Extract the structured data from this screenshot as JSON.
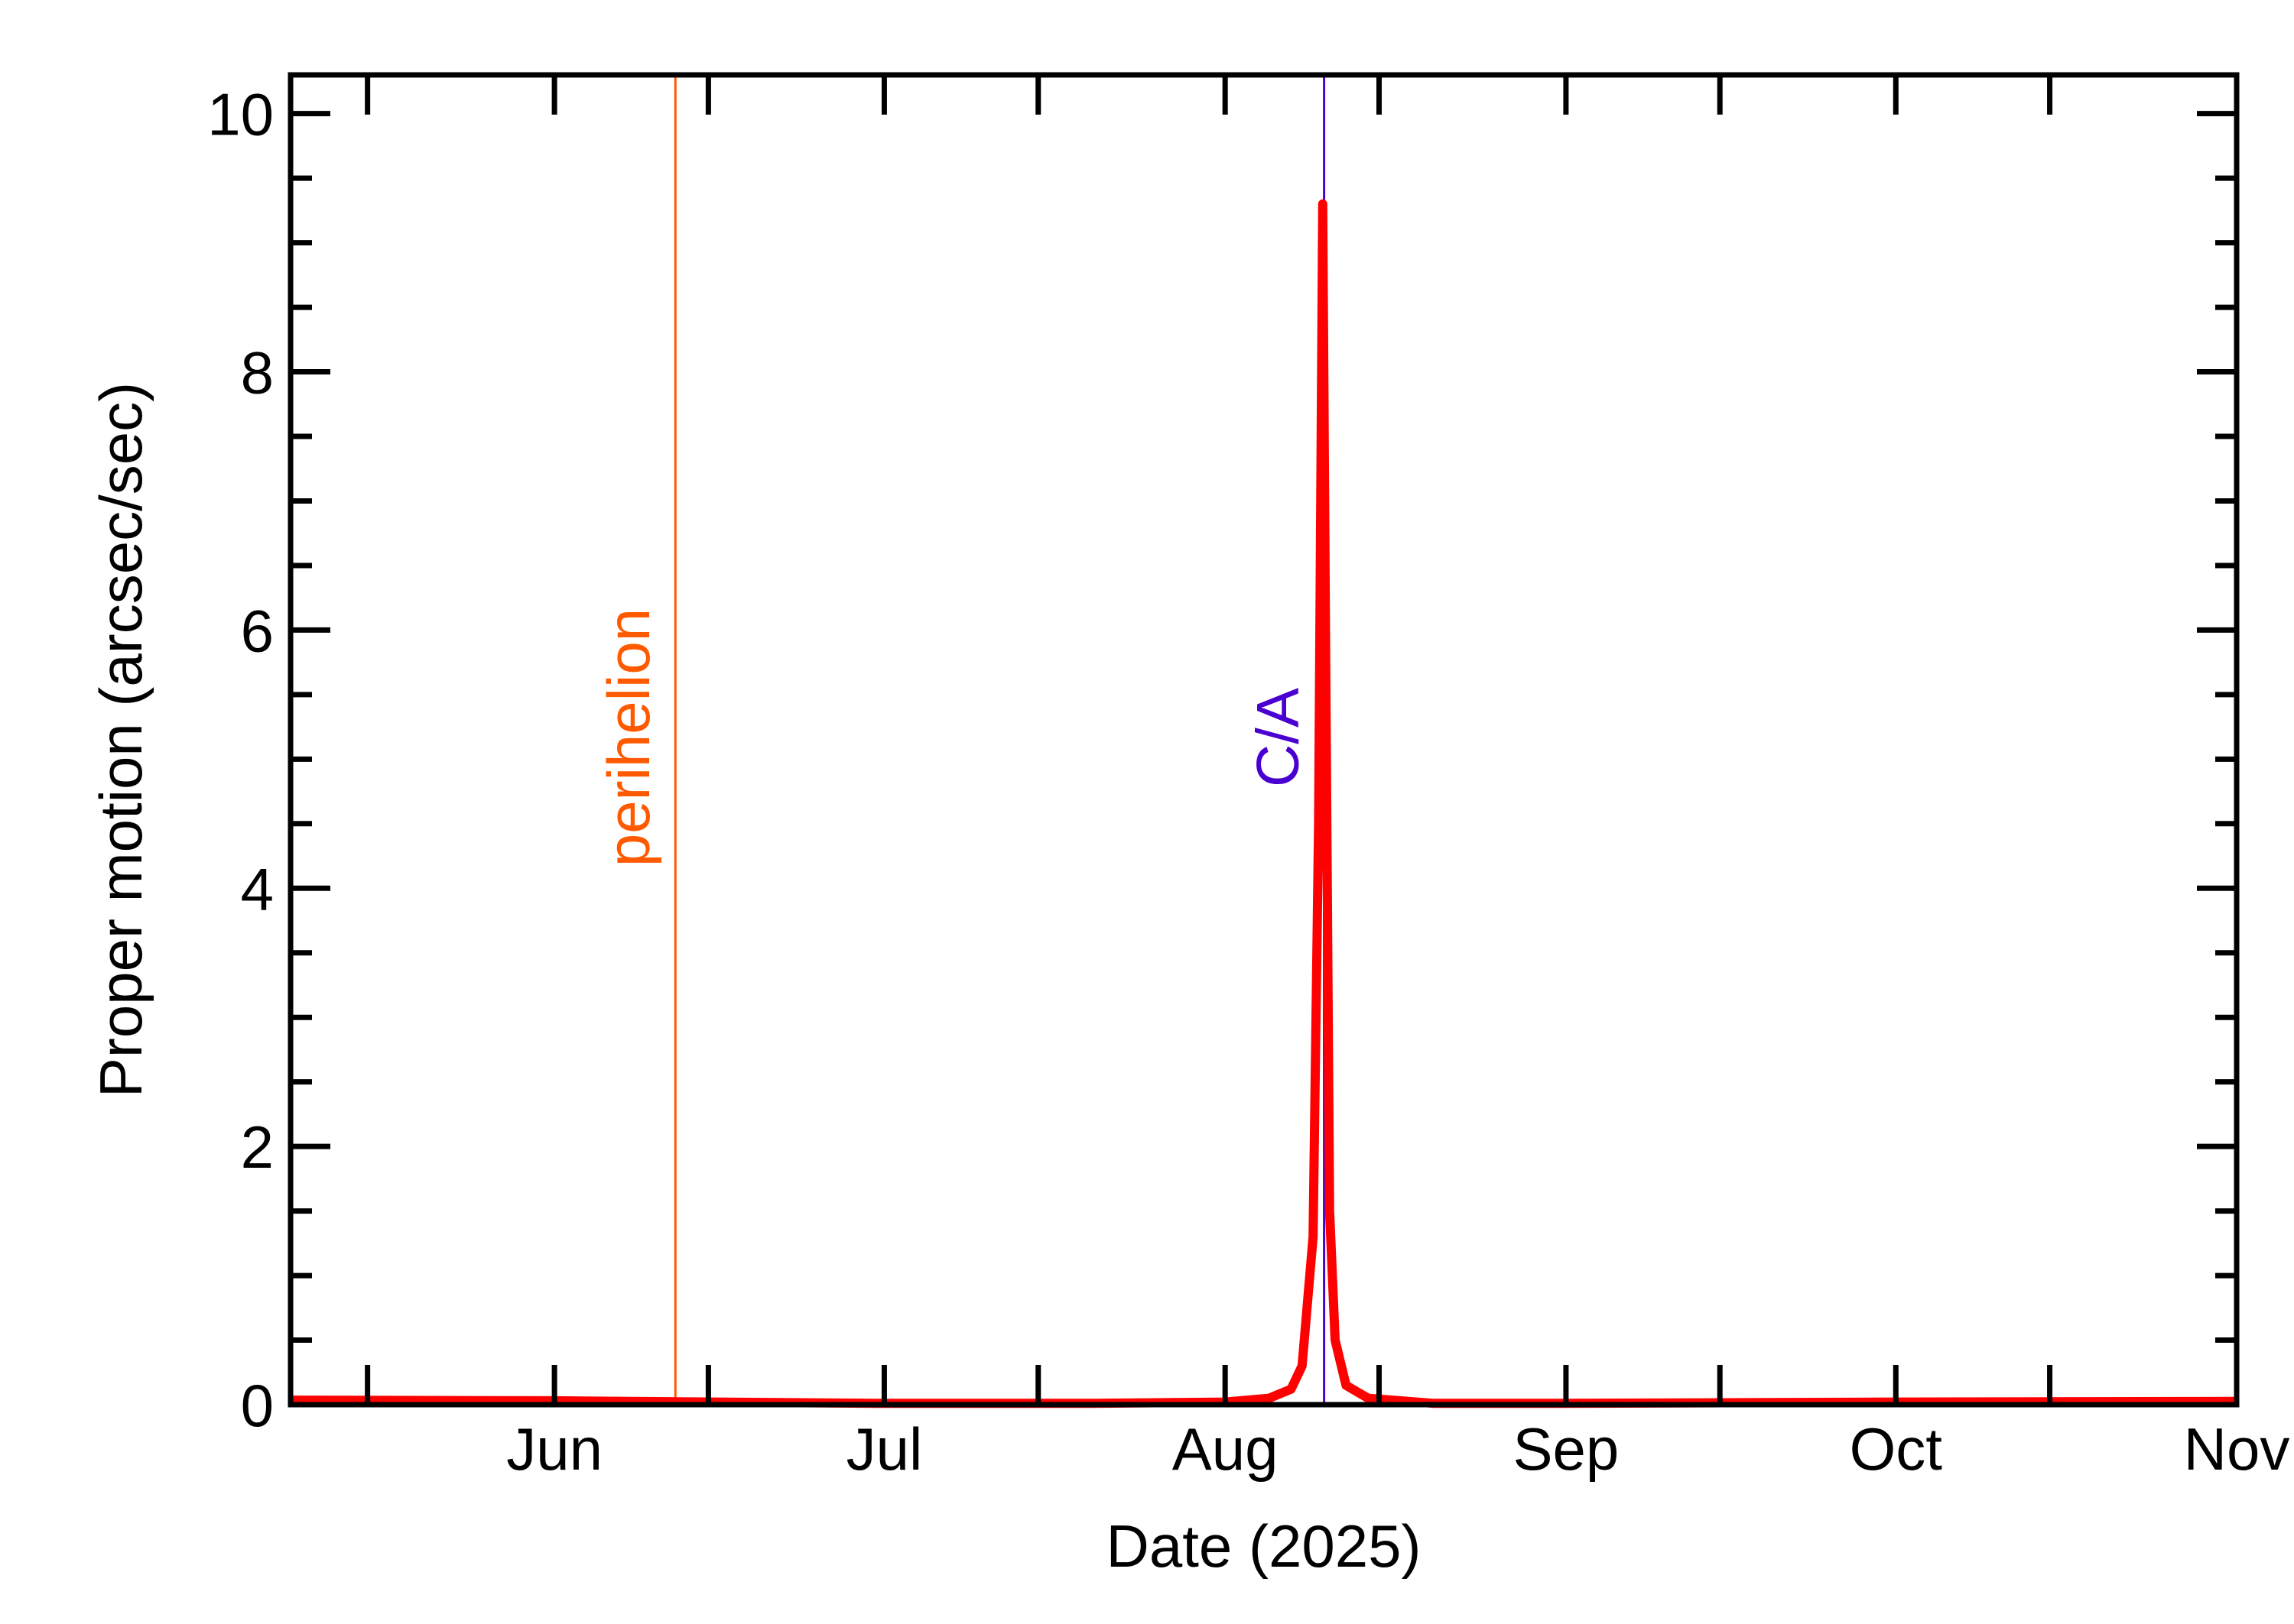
{
  "chart_data": {
    "type": "line",
    "title": "",
    "xlabel": "Date (2025)",
    "ylabel": "Proper motion (arcsec/sec)",
    "x_axis": {
      "type": "date",
      "range": [
        "2025-05-08",
        "2025-11-01"
      ],
      "ticks": [
        {
          "date": "2025-05-15",
          "label": ""
        },
        {
          "date": "2025-06-01",
          "label": "Jun"
        },
        {
          "date": "2025-06-15",
          "label": ""
        },
        {
          "date": "2025-07-01",
          "label": "Jul"
        },
        {
          "date": "2025-07-15",
          "label": ""
        },
        {
          "date": "2025-08-01",
          "label": "Aug"
        },
        {
          "date": "2025-08-15",
          "label": ""
        },
        {
          "date": "2025-09-01",
          "label": "Sep"
        },
        {
          "date": "2025-09-15",
          "label": ""
        },
        {
          "date": "2025-10-01",
          "label": "Oct"
        },
        {
          "date": "2025-10-15",
          "label": ""
        },
        {
          "date": "2025-11-01",
          "label": "Nov"
        }
      ]
    },
    "y_axis": {
      "range": [
        0,
        10.3
      ],
      "major_ticks": [
        0,
        2,
        4,
        6,
        8,
        10
      ],
      "tick_labels": [
        "0",
        "2",
        "4",
        "6",
        "8",
        "10"
      ],
      "minor_step": 0.5
    },
    "grid": false,
    "events": [
      {
        "label": "perihelion",
        "date": "2025-06-12",
        "color": "#ff5a00"
      },
      {
        "label": "C/A",
        "date": "2025-08-10",
        "color": "#4b00d2"
      }
    ],
    "series": [
      {
        "color": "#ff0000",
        "points": [
          {
            "date": "2025-05-08",
            "value": 0.035
          },
          {
            "date": "2025-06-01",
            "value": 0.03
          },
          {
            "date": "2025-07-01",
            "value": 0.01
          },
          {
            "date": "2025-07-20",
            "value": 0.01
          },
          {
            "date": "2025-08-01",
            "value": 0.02
          },
          {
            "date": "2025-08-05",
            "value": 0.05
          },
          {
            "date": "2025-08-07",
            "value": 0.12
          },
          {
            "date": "2025-08-08",
            "value": 0.3
          },
          {
            "date": "2025-08-09",
            "value": 1.3
          },
          {
            "date": "2025-08-09T12:00",
            "value": 4.5
          },
          {
            "date": "2025-08-09T21:00",
            "value": 9.3
          },
          {
            "date": "2025-08-10T03:00",
            "value": 6.0
          },
          {
            "date": "2025-08-10T12:00",
            "value": 1.5
          },
          {
            "date": "2025-08-11",
            "value": 0.5
          },
          {
            "date": "2025-08-12",
            "value": 0.15
          },
          {
            "date": "2025-08-14",
            "value": 0.05
          },
          {
            "date": "2025-08-20",
            "value": 0.01
          },
          {
            "date": "2025-09-01",
            "value": 0.01
          },
          {
            "date": "2025-10-01",
            "value": 0.02
          },
          {
            "date": "2025-11-01",
            "value": 0.025
          }
        ]
      }
    ]
  }
}
